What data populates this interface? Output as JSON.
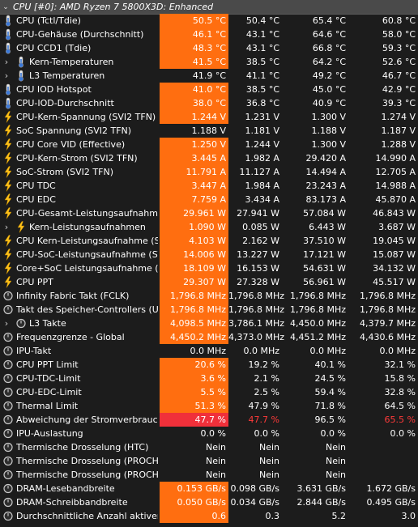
{
  "header": {
    "title": "CPU [#0]: AMD Ryzen 7 5800X3D: Enhanced",
    "caret": "⌄"
  },
  "colors": {
    "highlight": "#ff6e10",
    "alert": "#f0303a",
    "alert_text": "#ff3a3a"
  },
  "rows": [
    {
      "icon": "thermometer",
      "exp": false,
      "name": "CPU (Tctl/Tdie)",
      "cur": "50.5 °C",
      "min": "50.4 °C",
      "max": "65.4 °C",
      "avg": "60.8 °C",
      "hl": "orange"
    },
    {
      "icon": "thermometer",
      "exp": false,
      "name": "CPU-Gehäuse (Durchschnitt)",
      "cur": "46.1 °C",
      "min": "43.1 °C",
      "max": "64.6 °C",
      "avg": "58.0 °C",
      "hl": "orange"
    },
    {
      "icon": "thermometer",
      "exp": false,
      "name": "CPU CCD1 (Tdie)",
      "cur": "48.3 °C",
      "min": "43.1 °C",
      "max": "66.8 °C",
      "avg": "59.3 °C",
      "hl": "orange"
    },
    {
      "icon": "thermometer",
      "exp": true,
      "name": "Kern-Temperaturen",
      "cur": "41.5 °C",
      "min": "38.5 °C",
      "max": "64.2 °C",
      "avg": "52.6 °C",
      "hl": "orange"
    },
    {
      "icon": "thermometer",
      "exp": true,
      "name": "L3 Temperaturen",
      "cur": "41.9 °C",
      "min": "41.1 °C",
      "max": "49.2 °C",
      "avg": "46.7 °C",
      "hl": ""
    },
    {
      "icon": "thermometer",
      "exp": false,
      "name": "CPU IOD Hotspot",
      "cur": "41.0 °C",
      "min": "38.5 °C",
      "max": "45.0 °C",
      "avg": "42.9 °C",
      "hl": "orange"
    },
    {
      "icon": "thermometer",
      "exp": false,
      "name": "CPU-IOD-Durchschnitt",
      "cur": "38.0 °C",
      "min": "36.8 °C",
      "max": "40.9 °C",
      "avg": "39.3 °C",
      "hl": "orange"
    },
    {
      "icon": "bolt",
      "exp": false,
      "name": "CPU-Kern-Spannung (SVI2 TFN)",
      "cur": "1.244 V",
      "min": "1.231 V",
      "max": "1.300 V",
      "avg": "1.274 V",
      "hl": "orange"
    },
    {
      "icon": "bolt",
      "exp": false,
      "name": "SoC Spannung (SVI2 TFN)",
      "cur": "1.188 V",
      "min": "1.181 V",
      "max": "1.188 V",
      "avg": "1.187 V",
      "hl": ""
    },
    {
      "icon": "bolt",
      "exp": false,
      "name": "CPU Core VID (Effective)",
      "cur": "1.250 V",
      "min": "1.244 V",
      "max": "1.300 V",
      "avg": "1.288 V",
      "hl": "orange"
    },
    {
      "icon": "bolt",
      "exp": false,
      "name": "CPU-Kern-Strom (SVI2 TFN)",
      "cur": "3.445 A",
      "min": "1.982 A",
      "max": "29.420 A",
      "avg": "14.990 A",
      "hl": "orange"
    },
    {
      "icon": "bolt",
      "exp": false,
      "name": "SoC-Strom (SVI2 TFN)",
      "cur": "11.791 A",
      "min": "11.127 A",
      "max": "14.494 A",
      "avg": "12.705 A",
      "hl": "orange"
    },
    {
      "icon": "bolt",
      "exp": false,
      "name": "CPU TDC",
      "cur": "3.447 A",
      "min": "1.984 A",
      "max": "23.243 A",
      "avg": "14.988 A",
      "hl": "orange"
    },
    {
      "icon": "bolt",
      "exp": false,
      "name": "CPU EDC",
      "cur": "7.759 A",
      "min": "3.434 A",
      "max": "83.173 A",
      "avg": "45.870 A",
      "hl": "orange"
    },
    {
      "icon": "bolt",
      "exp": false,
      "name": "CPU-Gesamt-Leistungsaufnahme",
      "cur": "29.961 W",
      "min": "27.941 W",
      "max": "57.084 W",
      "avg": "46.843 W",
      "hl": "orange"
    },
    {
      "icon": "bolt",
      "exp": true,
      "name": "Kern-Leistungsaufnahmen",
      "cur": "1.090 W",
      "min": "0.085 W",
      "max": "6.443 W",
      "avg": "3.687 W",
      "hl": "orange"
    },
    {
      "icon": "bolt",
      "exp": false,
      "name": "CPU Kern-Leistungsaufnahme (S...",
      "cur": "4.103 W",
      "min": "2.162 W",
      "max": "37.510 W",
      "avg": "19.045 W",
      "hl": "orange"
    },
    {
      "icon": "bolt",
      "exp": false,
      "name": "CPU-SoC-Leistungsaufnahme (SVI...",
      "cur": "14.006 W",
      "min": "13.227 W",
      "max": "17.121 W",
      "avg": "15.087 W",
      "hl": "orange"
    },
    {
      "icon": "bolt",
      "exp": false,
      "name": "Core+SoC Leistungsaufnahme (S...",
      "cur": "18.109 W",
      "min": "16.153 W",
      "max": "54.631 W",
      "avg": "34.132 W",
      "hl": "orange"
    },
    {
      "icon": "bolt",
      "exp": false,
      "name": "CPU PPT",
      "cur": "29.307 W",
      "min": "27.328 W",
      "max": "56.961 W",
      "avg": "45.517 W",
      "hl": "orange"
    },
    {
      "icon": "circle",
      "exp": false,
      "name": "Infinity Fabric Takt (FCLK)",
      "cur": "1,796.8 MHz",
      "min": "1,796.8 MHz",
      "max": "1,796.8 MHz",
      "avg": "1,796.8 MHz",
      "hl": "orange"
    },
    {
      "icon": "circle",
      "exp": false,
      "name": "Takt des Speicher-Controllers (U...",
      "cur": "1,796.8 MHz",
      "min": "1,796.8 MHz",
      "max": "1,796.8 MHz",
      "avg": "1,796.8 MHz",
      "hl": "orange"
    },
    {
      "icon": "circle",
      "exp": true,
      "name": "L3 Takte",
      "cur": "4,098.5 MHz",
      "min": "3,786.1 MHz",
      "max": "4,450.0 MHz",
      "avg": "4,379.7 MHz",
      "hl": "orange"
    },
    {
      "icon": "circle",
      "exp": false,
      "name": "Frequenzgrenze - Global",
      "cur": "4,450.2 MHz",
      "min": "4,373.0 MHz",
      "max": "4,451.2 MHz",
      "avg": "4,430.6 MHz",
      "hl": "orange"
    },
    {
      "icon": "circle",
      "exp": false,
      "name": "IPU-Takt",
      "cur": "0.0 MHz",
      "min": "0.0 MHz",
      "max": "0.0 MHz",
      "avg": "0.0 MHz",
      "hl": ""
    },
    {
      "icon": "circle",
      "exp": false,
      "name": "CPU PPT Limit",
      "cur": "20.6 %",
      "min": "19.2 %",
      "max": "40.1 %",
      "avg": "32.1 %",
      "hl": "orange"
    },
    {
      "icon": "circle",
      "exp": false,
      "name": "CPU-TDC-Limit",
      "cur": "3.6 %",
      "min": "2.1 %",
      "max": "24.5 %",
      "avg": "15.8 %",
      "hl": "orange"
    },
    {
      "icon": "circle",
      "exp": false,
      "name": "CPU-EDC-Limit",
      "cur": "5.5 %",
      "min": "2.5 %",
      "max": "59.4 %",
      "avg": "32.8 %",
      "hl": "orange"
    },
    {
      "icon": "circle",
      "exp": false,
      "name": "Thermal Limit",
      "cur": "51.3 %",
      "min": "47.9 %",
      "max": "71.8 %",
      "avg": "64.5 %",
      "hl": "orange"
    },
    {
      "icon": "circle",
      "exp": false,
      "name": "Abweichung der Stromverbrauch...",
      "cur": "47.7 %",
      "min": "47.7 %",
      "max": "96.5 %",
      "avg": "65.5 %",
      "hl": "red",
      "red_text": true
    },
    {
      "icon": "circle",
      "exp": false,
      "name": "IPU-Auslastung",
      "cur": "0.0 %",
      "min": "0.0 %",
      "max": "0.0 %",
      "avg": "0.0 %",
      "hl": ""
    },
    {
      "icon": "circle",
      "exp": false,
      "name": "Thermische Drosselung (HTC)",
      "cur": "Nein",
      "min": "Nein",
      "max": "Nein",
      "avg": "",
      "hl": ""
    },
    {
      "icon": "circle",
      "exp": false,
      "name": "Thermische Drosselung (PROCH...",
      "cur": "Nein",
      "min": "Nein",
      "max": "Nein",
      "avg": "",
      "hl": ""
    },
    {
      "icon": "circle",
      "exp": false,
      "name": "Thermische Drosselung (PROCH...",
      "cur": "Nein",
      "min": "Nein",
      "max": "Nein",
      "avg": "",
      "hl": ""
    },
    {
      "icon": "circle",
      "exp": false,
      "name": "DRAM-Lesebandbreite",
      "cur": "0.153 GB/s",
      "min": "0.098 GB/s",
      "max": "3.631 GB/s",
      "avg": "1.672 GB/s",
      "hl": "orange"
    },
    {
      "icon": "circle",
      "exp": false,
      "name": "DRAM-Schreibbandbreite",
      "cur": "0.050 GB/s",
      "min": "0.034 GB/s",
      "max": "2.844 GB/s",
      "avg": "0.495 GB/s",
      "hl": "orange"
    },
    {
      "icon": "circle",
      "exp": false,
      "name": "Durchschnittliche Anzahl aktiver ...",
      "cur": "0.6",
      "min": "0.3",
      "max": "5.2",
      "avg": "3.0",
      "hl": "orange"
    }
  ]
}
